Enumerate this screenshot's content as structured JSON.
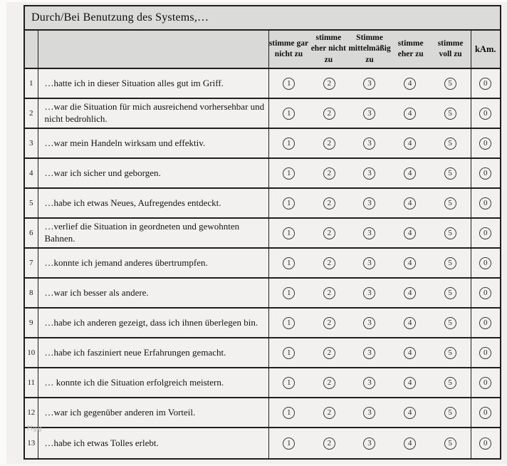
{
  "title": "Durch/Bei Benutzung des Systems,…",
  "header": {
    "rating_columns": [
      "stimme gar nicht zu",
      "stimme eher nicht zu",
      "Stimme mittelmäßig zu",
      "stimme eher zu",
      "stimme voll zu"
    ],
    "kam_label": "kAm."
  },
  "scale": [
    "1",
    "2",
    "3",
    "4",
    "5"
  ],
  "kam_value": "0",
  "rows": [
    {
      "num": "1",
      "statement": "…hatte ich in dieser Situation alles gut im Griff."
    },
    {
      "num": "2",
      "statement": "…war die Situation für mich ausreichend vorhersehbar und nicht bedrohlich."
    },
    {
      "num": "3",
      "statement": "…war mein Handeln wirksam und effektiv."
    },
    {
      "num": "4",
      "statement": "…war ich sicher und geborgen."
    },
    {
      "num": "5",
      "statement": "…habe ich etwas Neues, Aufregendes entdeckt."
    },
    {
      "num": "6",
      "statement": "…verlief die Situation in geordneten und gewohnten Bahnen."
    },
    {
      "num": "7",
      "statement": "…konnte ich jemand anderes übertrumpfen."
    },
    {
      "num": "8",
      "statement": "…war ich besser als andere."
    },
    {
      "num": "9",
      "statement": "…habe ich anderen gezeigt, dass ich ihnen überlegen bin."
    },
    {
      "num": "10",
      "statement": "…habe ich fasziniert neue Erfahrungen gemacht."
    },
    {
      "num": "11",
      "statement": "… konnte ich die Situation erfolgreich meistern."
    },
    {
      "num": "12",
      "statement": "…war ich gegenüber anderen im Vorteil."
    },
    {
      "num": "13",
      "statement": "…habe ich etwas Tolles erlebt."
    }
  ],
  "watermark": "Hgg",
  "colors": {
    "header_bg": "#dbdbda",
    "row_bg": "#f2f1ef",
    "border": "#1e1e1e",
    "page_bg": "#f1f0ee"
  }
}
